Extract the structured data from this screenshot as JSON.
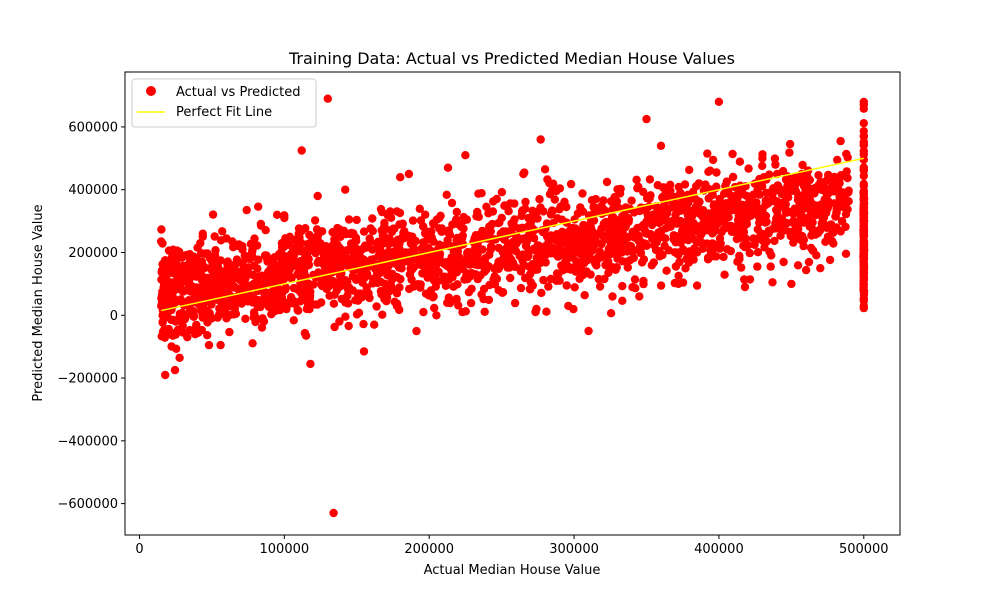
{
  "chart_data": {
    "type": "scatter",
    "title": "Training Data: Actual vs Predicted Median House Values",
    "xlabel": "Actual Median House Value",
    "ylabel": "Predicted Median House Value",
    "xlim": [
      -10000,
      525000
    ],
    "ylim": [
      -700000,
      775000
    ],
    "xticks": [
      0,
      100000,
      200000,
      300000,
      400000,
      500000
    ],
    "xtick_labels": [
      "0",
      "100000",
      "200000",
      "300000",
      "400000",
      "500000"
    ],
    "yticks": [
      -600000,
      -400000,
      -200000,
      0,
      200000,
      400000,
      600000
    ],
    "ytick_labels": [
      "−600000",
      "−400000",
      "−200000",
      "0",
      "200000",
      "400000",
      "600000"
    ],
    "grid": false,
    "legend_position": "top-left",
    "series": [
      {
        "name": "Actual vs Predicted",
        "kind": "scatter",
        "color": "#ff0000",
        "trend": {
          "x_range": [
            15000,
            500000
          ],
          "intercept": 60000,
          "slope": 0.6,
          "spread": 75000
        },
        "capped_column": {
          "x": 500001,
          "y_range": [
            10000,
            710000
          ]
        },
        "outliers": [
          [
            134000,
            -630000
          ],
          [
            130000,
            690000
          ],
          [
            112000,
            525000
          ],
          [
            118000,
            -155000
          ],
          [
            155000,
            -115000
          ],
          [
            350000,
            625000
          ],
          [
            400000,
            680000
          ],
          [
            277000,
            560000
          ],
          [
            310000,
            -50000
          ],
          [
            225000,
            510000
          ],
          [
            274000,
            20000
          ],
          [
            296000,
            30000
          ],
          [
            213000,
            470000
          ],
          [
            186000,
            450000
          ],
          [
            180000,
            440000
          ],
          [
            345000,
            60000
          ],
          [
            418000,
            90000
          ],
          [
            48000,
            -95000
          ],
          [
            56000,
            -95000
          ],
          [
            23000,
            -65000
          ],
          [
            15000,
            235000
          ],
          [
            25000,
            -20000
          ],
          [
            30000,
            -55000
          ],
          [
            33000,
            -70000
          ],
          [
            142000,
            400000
          ],
          [
            123000,
            380000
          ],
          [
            74000,
            335000
          ],
          [
            138000,
            -20000
          ],
          [
            205000,
            0
          ],
          [
            223000,
            10000
          ],
          [
            115000,
            -65000
          ],
          [
            437000,
            105000
          ],
          [
            450000,
            100000
          ],
          [
            470000,
            150000
          ],
          [
            484000,
            555000
          ],
          [
            372000,
            100000
          ],
          [
            392000,
            515000
          ],
          [
            396000,
            495000
          ],
          [
            360000,
            540000
          ],
          [
            265000,
            450000
          ],
          [
            280000,
            465000
          ],
          [
            439000,
            480000
          ],
          [
            431000,
            440000
          ],
          [
            430000,
            500000
          ],
          [
            248000,
            80000
          ],
          [
            196000,
            10000
          ],
          [
            162000,
            -30000
          ],
          [
            100000,
            310000
          ],
          [
            95000,
            320000
          ],
          [
            60000,
            245000
          ],
          [
            42000,
            230000
          ],
          [
            18000,
            175000
          ],
          [
            20000,
            60000
          ],
          [
            15000,
            30000
          ]
        ]
      },
      {
        "name": "Perfect Fit Line",
        "kind": "line",
        "color": "#ffff00",
        "x": [
          15000,
          500001
        ],
        "y": [
          15000,
          500001
        ]
      }
    ]
  }
}
